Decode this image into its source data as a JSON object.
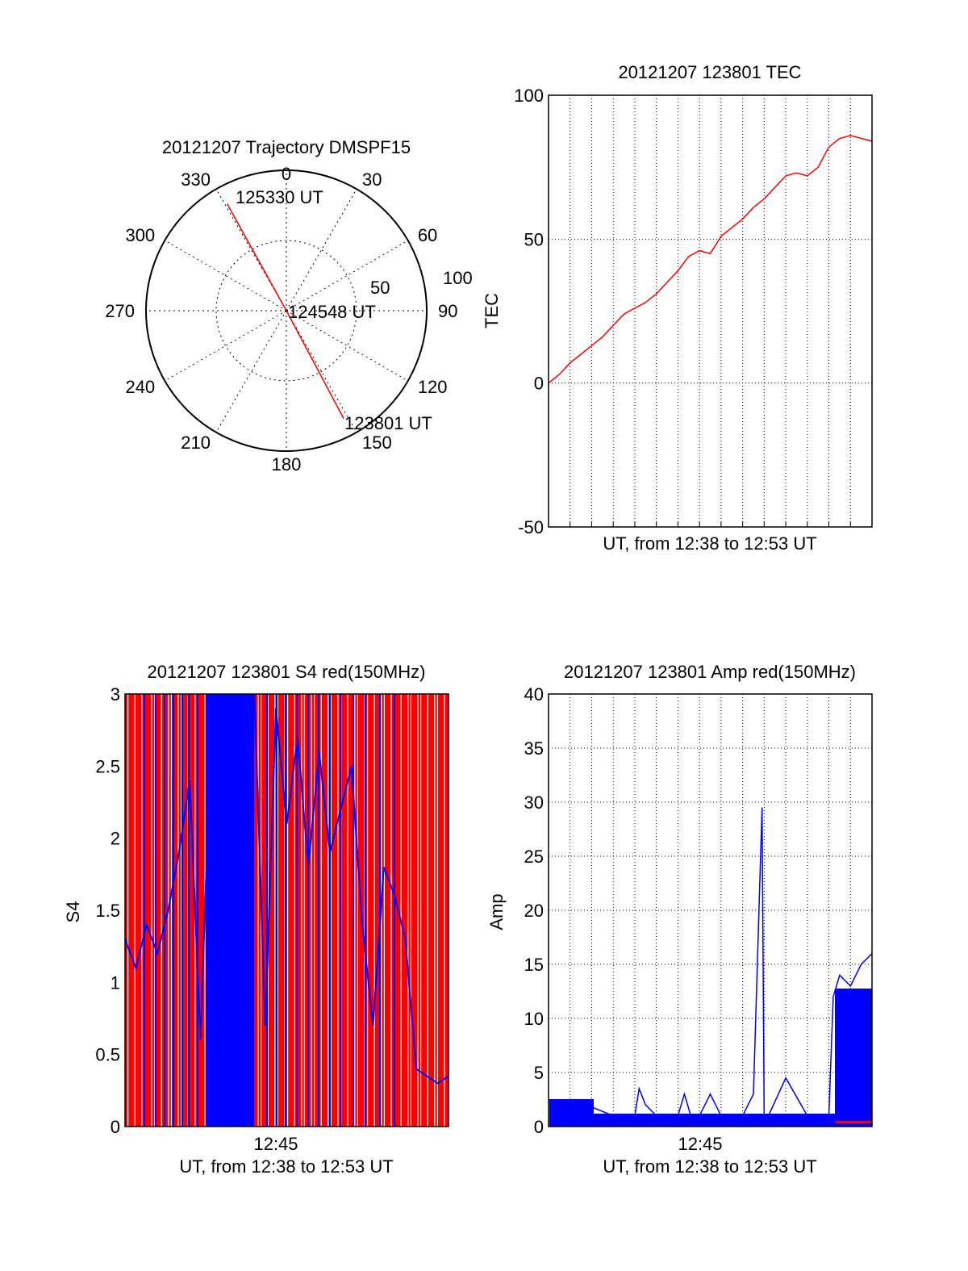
{
  "colors": {
    "red": "#ff0000",
    "blue": "#0000ff",
    "axis": "#000000",
    "grid": "#000000"
  },
  "chart_data": [
    {
      "id": "trajectory",
      "type": "polar",
      "title": "20121207 Trajectory DMSPF15",
      "angle_ticks": [
        "0",
        "30",
        "60",
        "90",
        "120",
        "150",
        "180",
        "210",
        "240",
        "270",
        "300",
        "330"
      ],
      "angle_values": [
        0,
        30,
        60,
        90,
        120,
        150,
        180,
        210,
        240,
        270,
        300,
        330
      ],
      "radial_ticks": [
        "50",
        "100"
      ],
      "radial_values": [
        50,
        100
      ],
      "grid": true,
      "annotations": [
        "125330 UT",
        "124548 UT",
        "123801 UT"
      ],
      "track": {
        "color": "red",
        "points": [
          {
            "label": "125330 UT",
            "azimuth": 331,
            "distance": 87
          },
          {
            "label": "124548 UT",
            "azimuth": 0,
            "distance": 0
          },
          {
            "label": "123801 UT",
            "azimuth": 152,
            "distance": 87
          }
        ]
      }
    },
    {
      "id": "tec",
      "type": "line",
      "title": "20121207 123801 TEC",
      "xlabel": "UT, from 12:38 to 12:53 UT",
      "ylabel": "TEC",
      "ylim": [
        -50,
        100
      ],
      "yticks": [
        "100",
        "50",
        "0",
        "-50"
      ],
      "ytick_values": [
        100,
        50,
        0,
        -50
      ],
      "xlim_minutes": [
        0,
        15
      ],
      "grid": true,
      "series": [
        {
          "color": "red",
          "x": [
            0,
            0.5,
            1,
            1.5,
            2,
            2.5,
            3,
            3.5,
            4,
            4.5,
            5,
            5.5,
            6,
            6.5,
            7,
            7.5,
            8,
            8.5,
            9,
            9.5,
            10,
            10.5,
            11,
            11.5,
            12,
            12.5,
            13,
            13.5,
            14,
            14.5,
            15
          ],
          "y": [
            0,
            3,
            7,
            10,
            13,
            16,
            20,
            24,
            26,
            28,
            31,
            35,
            39,
            44,
            46,
            45,
            51,
            54,
            57,
            61,
            64,
            68,
            72,
            73,
            72,
            75,
            82,
            85,
            86,
            85,
            84
          ]
        }
      ]
    },
    {
      "id": "s4",
      "type": "line",
      "title": "20121207 123801 S4 red(150MHz)",
      "xlabel": "UT, from 12:38 to 12:53 UT",
      "ylabel": "S4",
      "ylim": [
        0,
        3
      ],
      "yticks": [
        "3",
        "2.5",
        "2",
        "1.5",
        "1",
        "0.5",
        "0"
      ],
      "ytick_values": [
        3,
        2.5,
        2,
        1.5,
        1,
        0.5,
        0
      ],
      "xticks": [
        "12:45"
      ],
      "xtick_minutes": [
        7
      ],
      "xlim_minutes": [
        0,
        15
      ],
      "grid": true,
      "series": [
        {
          "color": "red",
          "x": [
            0,
            0.5,
            1,
            1.5,
            2,
            2.5,
            3,
            3.5,
            4,
            4.5,
            5,
            5.5,
            6,
            6.5,
            7,
            7.5,
            8,
            8.5,
            9,
            9.5,
            10,
            10.5,
            11,
            11.5,
            12,
            12.5,
            13,
            13.5,
            14,
            14.5,
            15
          ],
          "y": [
            0,
            3,
            0,
            3,
            0,
            3,
            0,
            3,
            0,
            3,
            0,
            3,
            0,
            3,
            0,
            3,
            0,
            3,
            0,
            3,
            0,
            3,
            0,
            3,
            0,
            3,
            0,
            3,
            0,
            3,
            0
          ]
        },
        {
          "color": "blue",
          "x": [
            0,
            0.5,
            1,
            1.5,
            2,
            2.5,
            3,
            3.5,
            4,
            4.5,
            5,
            5.5,
            6,
            6.5,
            7,
            7.5,
            8,
            8.5,
            9,
            9.5,
            10,
            10.5,
            11,
            11.5,
            12,
            12.5,
            13,
            13.5,
            14,
            14.5,
            15
          ],
          "y": [
            1.3,
            1.1,
            1.4,
            1.2,
            1.5,
            1.9,
            2.4,
            0.6,
            2.8,
            1.5,
            3,
            2.2,
            3,
            0.7,
            2.9,
            2.1,
            2.7,
            1.8,
            2.6,
            1.9,
            2.2,
            2.5,
            1.4,
            0.7,
            1.8,
            1.6,
            1.3,
            0.4,
            0.35,
            0.3,
            0.35
          ]
        }
      ]
    },
    {
      "id": "amp",
      "type": "line",
      "title": "20121207 123801 Amp red(150MHz)",
      "xlabel": "UT, from 12:38 to 12:53 UT",
      "ylabel": "Amp",
      "ylim": [
        0,
        40
      ],
      "yticks": [
        "40",
        "35",
        "30",
        "25",
        "20",
        "15",
        "10",
        "5",
        "0"
      ],
      "ytick_values": [
        40,
        35,
        30,
        25,
        20,
        15,
        10,
        5,
        0
      ],
      "xticks": [
        "12:45"
      ],
      "xtick_minutes": [
        7
      ],
      "xlim_minutes": [
        0,
        15
      ],
      "grid": true,
      "series": [
        {
          "color": "blue",
          "x": [
            0,
            1,
            2,
            3,
            4,
            4.2,
            4.5,
            5,
            6,
            6.3,
            6.6,
            7,
            7.5,
            8,
            8.4,
            9,
            9.5,
            9.9,
            10,
            10.2,
            11,
            12,
            13,
            13.2,
            13.5,
            14,
            14.5,
            15
          ],
          "y": [
            2.5,
            2,
            1.8,
            1,
            1,
            3.5,
            2,
            1,
            1,
            3,
            1,
            1,
            3,
            1,
            1,
            1,
            3,
            29.5,
            1,
            1,
            4.5,
            1,
            1,
            12,
            14,
            13,
            15,
            16
          ]
        },
        {
          "color": "red",
          "x": [
            13.3,
            14,
            15
          ],
          "y": [
            0.4,
            0.4,
            0.4
          ]
        }
      ]
    }
  ]
}
